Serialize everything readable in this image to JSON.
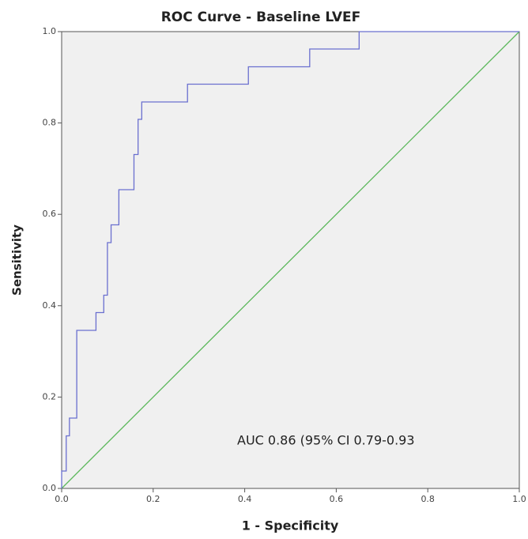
{
  "chart_data": {
    "type": "line",
    "title": "ROC Curve - Baseline LVEF",
    "x_label": "1 - Specificity",
    "y_label": "Sensitivity",
    "annotation": "AUC 0.86 (95% CI 0.79-0.93",
    "xlim": [
      0,
      1
    ],
    "ylim": [
      0,
      1
    ],
    "xticks": [
      {
        "value": 0,
        "label": "0.0"
      },
      0.2,
      0.4,
      0.6,
      0.8,
      {
        "value": 1,
        "label": "1.0"
      }
    ],
    "yticks": [
      {
        "value": 0,
        "label": "0.0"
      },
      0.2,
      0.4,
      0.6,
      0.8,
      {
        "value": 1,
        "label": "1.0"
      }
    ],
    "series": [
      {
        "color": "#6a6fcf",
        "x": [
          0,
          0,
          0.01,
          0.01,
          0.017,
          0.017,
          0.033,
          0.033,
          0.075,
          0.075,
          0.092,
          0.092,
          0.1,
          0.1,
          0.108,
          0.108,
          0.125,
          0.125,
          0.158,
          0.158,
          0.167,
          0.167,
          0.175,
          0.175,
          0.275,
          0.275,
          0.408,
          0.408,
          0.542,
          0.542,
          0.65,
          0.65,
          1
        ],
        "values": [
          0,
          0.038,
          0.038,
          0.115,
          0.115,
          0.154,
          0.154,
          0.346,
          0.346,
          0.385,
          0.385,
          0.423,
          0.423,
          0.538,
          0.538,
          0.577,
          0.577,
          0.654,
          0.654,
          0.731,
          0.731,
          0.808,
          0.808,
          0.846,
          0.846,
          0.885,
          0.885,
          0.923,
          0.923,
          0.962,
          0.962,
          1,
          1
        ]
      },
      {
        "color": "#5cb85c",
        "x": [
          0,
          1
        ],
        "values": [
          0,
          1
        ]
      }
    ]
  }
}
